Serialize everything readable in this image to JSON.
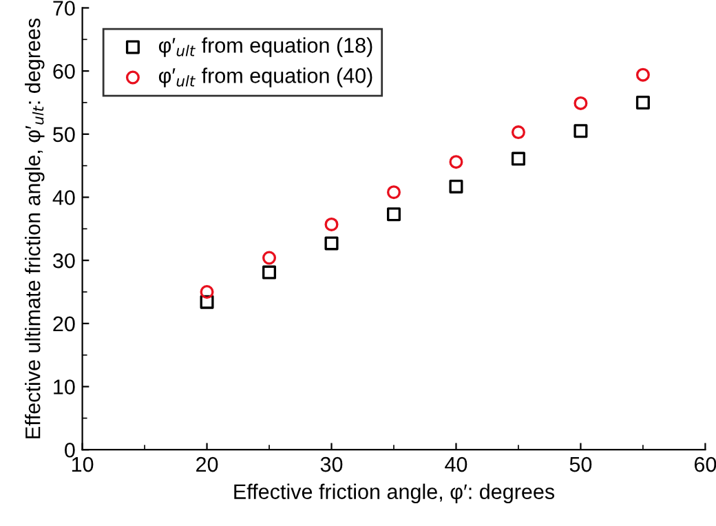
{
  "chart_data": {
    "type": "scatter",
    "xlabel": "Effective friction angle, φ′: degrees",
    "ylabel": "Effective ultimate friction angle, φ′$_{ult}$: degrees",
    "x": [
      20,
      25,
      30,
      35,
      40,
      45,
      50,
      55
    ],
    "series": [
      {
        "name": "φ′$_{ult}$ from equation (18)",
        "color": "#000000",
        "marker": "square",
        "values": [
          23.4,
          28.1,
          32.7,
          37.3,
          41.7,
          46.1,
          50.5,
          55.0
        ]
      },
      {
        "name": "φ′$_{ult}$ from equation (40)",
        "color": "#e8101e",
        "marker": "circle",
        "values": [
          25.0,
          30.4,
          35.7,
          40.8,
          45.6,
          50.3,
          54.9,
          59.4
        ]
      }
    ],
    "xlim": [
      10,
      60
    ],
    "xticks": [
      10,
      20,
      30,
      40,
      50,
      60
    ],
    "ylim": [
      0,
      70
    ],
    "yticks": [
      0,
      10,
      20,
      30,
      40,
      50,
      60,
      70
    ],
    "grid": false,
    "legend": "top left"
  }
}
